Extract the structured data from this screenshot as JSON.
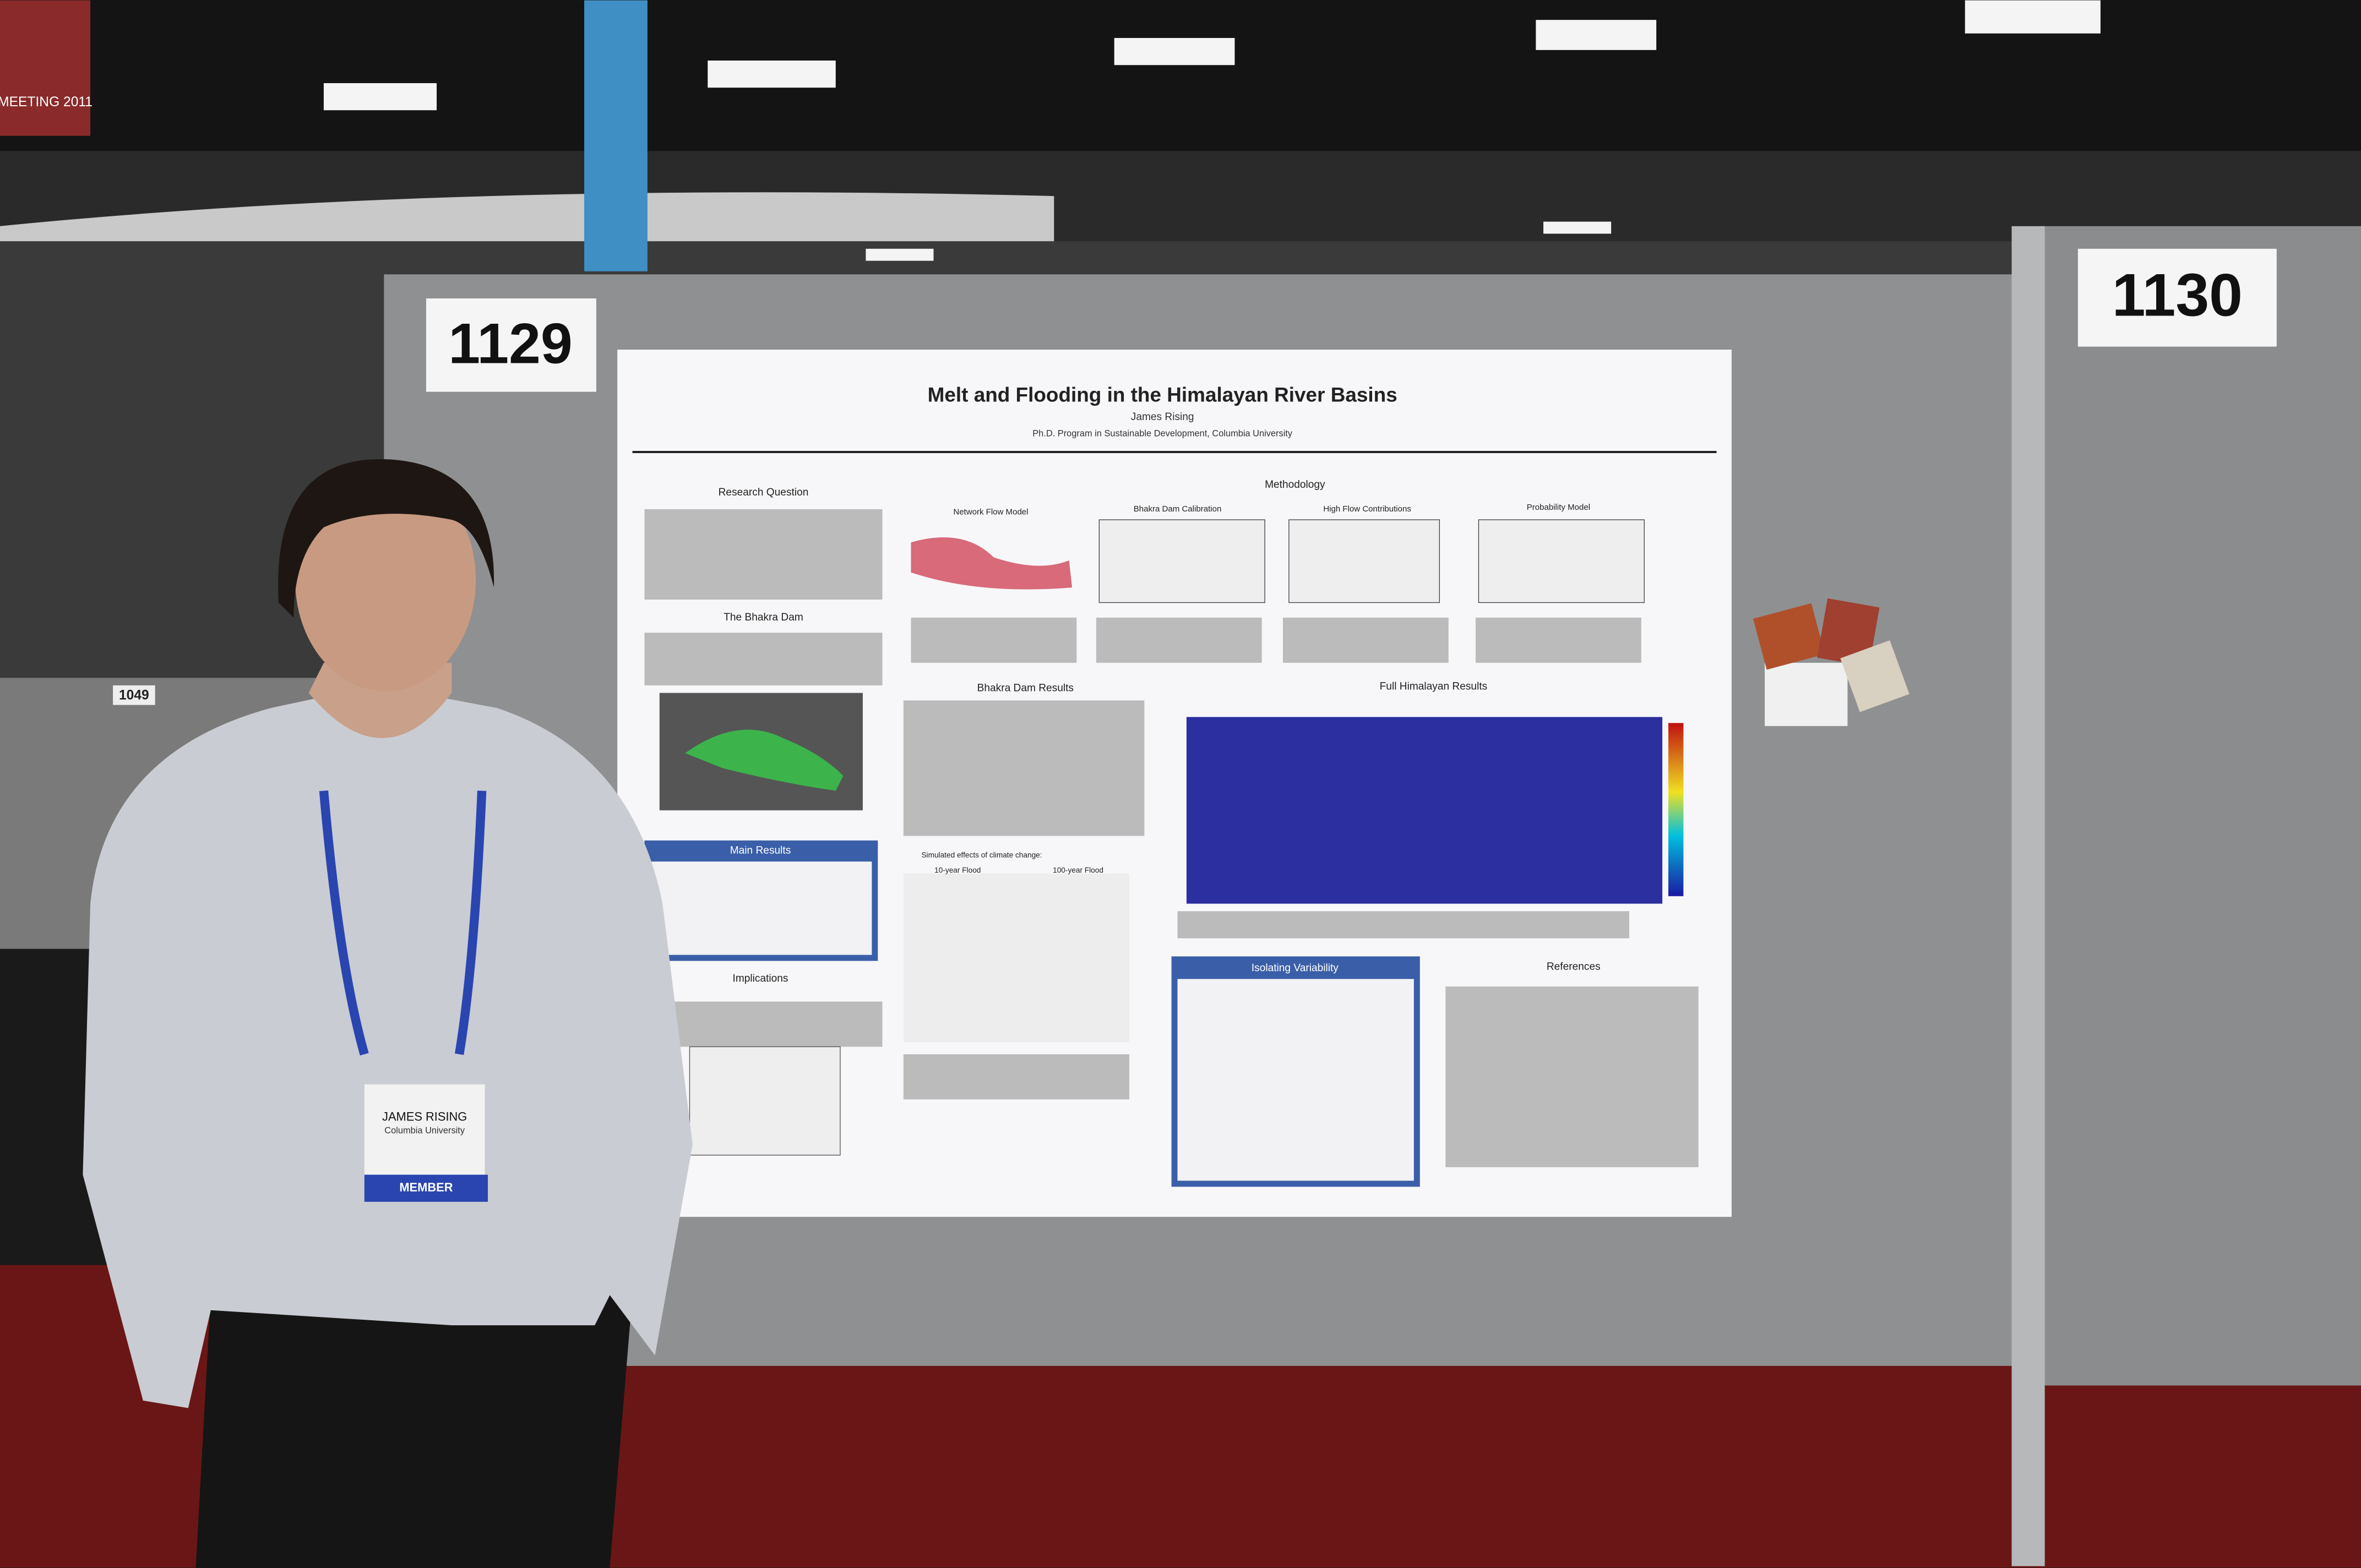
{
  "signs": {
    "left_booth": "1129",
    "right_booth": "1130",
    "far_booth": "1049",
    "banner": "MEETING 2011"
  },
  "poster": {
    "title": "Melt and Flooding in the Himalayan River Basins",
    "author": "James Rising",
    "affiliation": "Ph.D. Program in Sustainable Development, Columbia University",
    "sections": [
      "Research Question",
      "The Bhakra Dam",
      "Main Results",
      "Implications",
      "Methodology",
      "Network Flow Model",
      "Bhakra Dam Calibration",
      "High Flow Contributions",
      "Probability Model",
      "Bhakra Dam Results",
      "Full Himalayan Results",
      "Simulated effects of climate change:",
      "10-year Flood",
      "100-year Flood",
      "Isolating Variability",
      "References"
    ]
  },
  "badge": {
    "name": "JAMES RISING",
    "affiliation": "Columbia University",
    "type": "MEMBER"
  }
}
